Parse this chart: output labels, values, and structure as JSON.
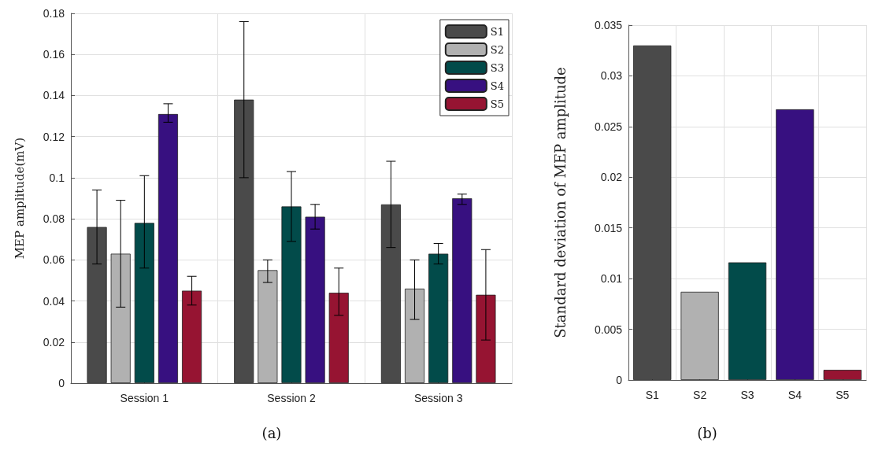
{
  "chart_data": [
    {
      "type": "bar",
      "title": "(a)",
      "ylabel": "MEP amplitude(mV)",
      "categories": [
        "Session 1",
        "Session 2",
        "Session 3"
      ],
      "series": [
        {
          "name": "S1",
          "color": "#4a4a4a",
          "values": [
            0.076,
            0.138,
            0.087
          ],
          "errors": [
            [
              0.058,
              0.094
            ],
            [
              0.1,
              0.176
            ],
            [
              0.066,
              0.108
            ]
          ]
        },
        {
          "name": "S2",
          "color": "#b1b1b1",
          "values": [
            0.063,
            0.055,
            0.046
          ],
          "errors": [
            [
              0.037,
              0.089
            ],
            [
              0.049,
              0.06
            ],
            [
              0.031,
              0.06
            ]
          ]
        },
        {
          "name": "S3",
          "color": "#024b4a",
          "values": [
            0.078,
            0.086,
            0.063
          ],
          "errors": [
            [
              0.056,
              0.101
            ],
            [
              0.069,
              0.103
            ],
            [
              0.058,
              0.068
            ]
          ]
        },
        {
          "name": "S4",
          "color": "#371080",
          "values": [
            0.131,
            0.081,
            0.09
          ],
          "errors": [
            [
              0.127,
              0.136
            ],
            [
              0.075,
              0.087
            ],
            [
              0.087,
              0.092
            ]
          ]
        },
        {
          "name": "S5",
          "color": "#961432",
          "values": [
            0.045,
            0.044,
            0.043
          ],
          "errors": [
            [
              0.038,
              0.052
            ],
            [
              0.033,
              0.056
            ],
            [
              0.021,
              0.065
            ]
          ]
        }
      ],
      "ylim": [
        0,
        0.18
      ],
      "yticks": [
        0,
        0.02,
        0.04,
        0.06,
        0.08,
        {
          "value": 0.1,
          "label": "0.1"
        },
        0.12,
        0.14,
        0.16,
        0.18
      ],
      "grid": true,
      "legend": "top right"
    },
    {
      "type": "bar",
      "title": "(b)",
      "ylabel": "Standard deviation of MEP amplitude",
      "categories": [
        "S1",
        "S2",
        "S3",
        "S4",
        "S5"
      ],
      "values": [
        0.033,
        0.0087,
        0.0116,
        0.0267,
        0.001
      ],
      "colors": [
        "#4a4a4a",
        "#b1b1b1",
        "#024b4a",
        "#371080",
        "#961432"
      ],
      "ylim": [
        0,
        0.035
      ],
      "yticks": [
        0,
        0.005,
        0.01,
        0.015,
        0.02,
        0.025,
        0.03,
        0.035
      ],
      "grid": true
    }
  ]
}
